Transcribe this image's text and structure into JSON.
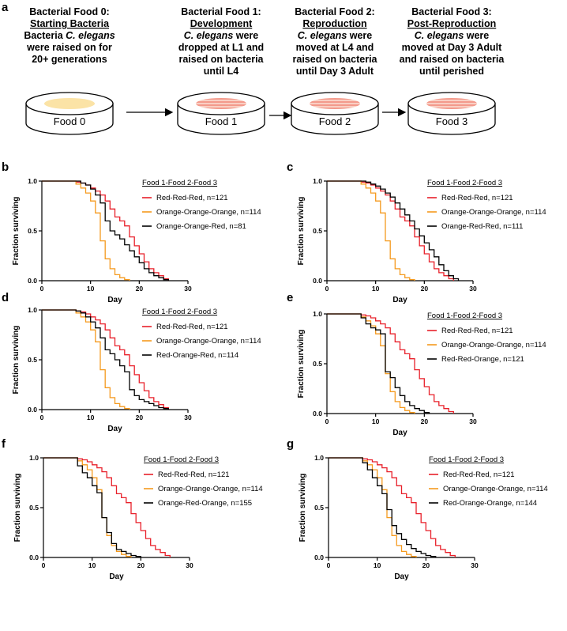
{
  "panel_a": {
    "label": "a",
    "stages": [
      {
        "lines": [
          "Bacterial Food 0:",
          "Starting Bacteria",
          "Bacteria C. elegans",
          "were raised on for",
          "20+ generations"
        ],
        "dish_label": "Food 0",
        "dish_color": "#fbe3a6",
        "striped": false
      },
      {
        "lines": [
          "Bacterial Food 1:",
          "Development",
          "C. elegans were",
          "dropped at L1 and",
          "raised on bacteria",
          "until L4"
        ],
        "dish_label": "Food 1",
        "dish_color": "#f6b8a8",
        "striped": true
      },
      {
        "lines": [
          "Bacterial Food 2:",
          "Reproduction",
          "C. elegans were",
          "moved at L4 and",
          "raised on bacteria",
          "until Day 3 Adult"
        ],
        "dish_label": "Food 2",
        "dish_color": "#f6b8a8",
        "striped": true
      },
      {
        "lines": [
          "Bacterial Food 3:",
          "Post-Reproduction",
          "C. elegans were",
          "moved at Day 3 Adult",
          "and raised on bacteria",
          "until perished"
        ],
        "dish_label": "Food 3",
        "dish_color": "#f6b8a8",
        "striped": true
      }
    ]
  },
  "colors": {
    "red": "#e8202a",
    "orange": "#f59a1e",
    "black": "#000000"
  },
  "chart_data": [
    {
      "panel": "b",
      "type": "line",
      "xlabel": "Day",
      "ylabel": "Fraction surviving",
      "xlim": [
        0,
        30
      ],
      "ylim": [
        0,
        1
      ],
      "xticks": [
        "0",
        "10",
        "20",
        "30"
      ],
      "yticks": [
        "0.0",
        "0.5",
        "1.0"
      ],
      "legend_title": "Food 1-Food 2-Food 3",
      "series": [
        {
          "name": "Red-Red-Red, n=121",
          "color": "red",
          "x": [
            0,
            7,
            8,
            9,
            10,
            11,
            12,
            13,
            14,
            15,
            16,
            17,
            18,
            19,
            20,
            21,
            22,
            23,
            24,
            25,
            26
          ],
          "y": [
            1,
            0.99,
            0.98,
            0.96,
            0.93,
            0.9,
            0.86,
            0.8,
            0.72,
            0.64,
            0.6,
            0.55,
            0.44,
            0.35,
            0.27,
            0.19,
            0.12,
            0.08,
            0.05,
            0.02,
            0
          ]
        },
        {
          "name": "Orange-Orange-Orange, n=114",
          "color": "orange",
          "x": [
            0,
            7,
            8,
            9,
            10,
            11,
            12,
            13,
            14,
            15,
            16,
            17,
            18
          ],
          "y": [
            1,
            0.97,
            0.93,
            0.88,
            0.8,
            0.68,
            0.4,
            0.22,
            0.12,
            0.06,
            0.03,
            0.01,
            0
          ]
        },
        {
          "name": "Orange-Orange-Red, n=81",
          "color": "black",
          "x": [
            0,
            8,
            9,
            10,
            11,
            12,
            13,
            14,
            15,
            16,
            17,
            18,
            19,
            20,
            21,
            22,
            23,
            24,
            25,
            26
          ],
          "y": [
            1,
            0.98,
            0.96,
            0.92,
            0.86,
            0.78,
            0.6,
            0.5,
            0.46,
            0.42,
            0.36,
            0.3,
            0.24,
            0.18,
            0.12,
            0.08,
            0.05,
            0.03,
            0.01,
            0
          ]
        }
      ]
    },
    {
      "panel": "c",
      "type": "line",
      "xlabel": "Day",
      "ylabel": "Fraction surviving",
      "xlim": [
        0,
        30
      ],
      "ylim": [
        0,
        1
      ],
      "xticks": [
        "0",
        "10",
        "20",
        "30"
      ],
      "yticks": [
        "0.0",
        "0.5",
        "1.0"
      ],
      "legend_title": "Food 1-Food 2-Food 3",
      "series": [
        {
          "name": "Red-Red-Red, n=121",
          "color": "red",
          "x": [
            0,
            7,
            8,
            9,
            10,
            11,
            12,
            13,
            14,
            15,
            16,
            17,
            18,
            19,
            20,
            21,
            22,
            23,
            24,
            25,
            26
          ],
          "y": [
            1,
            0.99,
            0.98,
            0.96,
            0.93,
            0.9,
            0.86,
            0.8,
            0.72,
            0.64,
            0.6,
            0.55,
            0.44,
            0.35,
            0.27,
            0.19,
            0.12,
            0.08,
            0.05,
            0.02,
            0
          ]
        },
        {
          "name": "Orange-Orange-Orange, n=114",
          "color": "orange",
          "x": [
            0,
            7,
            8,
            9,
            10,
            11,
            12,
            13,
            14,
            15,
            16,
            17,
            18
          ],
          "y": [
            1,
            0.97,
            0.93,
            0.88,
            0.8,
            0.68,
            0.4,
            0.22,
            0.12,
            0.06,
            0.03,
            0.01,
            0
          ]
        },
        {
          "name": "Orange-Red-Red, n=111",
          "color": "black",
          "x": [
            0,
            8,
            9,
            10,
            11,
            12,
            13,
            14,
            15,
            16,
            17,
            18,
            19,
            20,
            21,
            22,
            23,
            24,
            25,
            26,
            27
          ],
          "y": [
            1,
            0.99,
            0.97,
            0.95,
            0.92,
            0.88,
            0.84,
            0.78,
            0.72,
            0.66,
            0.6,
            0.52,
            0.45,
            0.38,
            0.31,
            0.24,
            0.16,
            0.1,
            0.05,
            0.02,
            0
          ]
        }
      ]
    },
    {
      "panel": "d",
      "type": "line",
      "xlabel": "Day",
      "ylabel": "Fraction surviving",
      "xlim": [
        0,
        30
      ],
      "ylim": [
        0,
        1
      ],
      "xticks": [
        "0",
        "10",
        "20",
        "30"
      ],
      "yticks": [
        "0.0",
        "0.5",
        "1.0"
      ],
      "legend_title": "Food 1-Food 2-Food 3",
      "series": [
        {
          "name": "Red-Red-Red, n=121",
          "color": "red",
          "x": [
            0,
            7,
            8,
            9,
            10,
            11,
            12,
            13,
            14,
            15,
            16,
            17,
            18,
            19,
            20,
            21,
            22,
            23,
            24,
            25,
            26
          ],
          "y": [
            1,
            0.99,
            0.98,
            0.96,
            0.93,
            0.9,
            0.86,
            0.8,
            0.72,
            0.64,
            0.6,
            0.55,
            0.44,
            0.35,
            0.27,
            0.19,
            0.12,
            0.08,
            0.05,
            0.02,
            0
          ]
        },
        {
          "name": "Orange-Orange-Orange, n=114",
          "color": "orange",
          "x": [
            0,
            7,
            8,
            9,
            10,
            11,
            12,
            13,
            14,
            15,
            16,
            17,
            18
          ],
          "y": [
            1,
            0.97,
            0.93,
            0.88,
            0.8,
            0.68,
            0.4,
            0.22,
            0.12,
            0.06,
            0.03,
            0.01,
            0
          ]
        },
        {
          "name": "Red-Orange-Red, n=114",
          "color": "black",
          "x": [
            0,
            7,
            8,
            9,
            10,
            11,
            12,
            13,
            14,
            15,
            16,
            17,
            18,
            19,
            20,
            21,
            22,
            23,
            24,
            25,
            26
          ],
          "y": [
            1,
            0.99,
            0.97,
            0.93,
            0.88,
            0.82,
            0.72,
            0.6,
            0.56,
            0.5,
            0.44,
            0.38,
            0.2,
            0.14,
            0.1,
            0.08,
            0.06,
            0.04,
            0.02,
            0.01,
            0
          ]
        }
      ]
    },
    {
      "panel": "e",
      "type": "line",
      "xlabel": "Day",
      "ylabel": "Fraction surviving",
      "xlim": [
        0,
        30
      ],
      "ylim": [
        0,
        1
      ],
      "xticks": [
        "0",
        "10",
        "20",
        "30"
      ],
      "yticks": [
        "0.0",
        "0.5",
        "1.0"
      ],
      "legend_title": "Food 1-Food 2-Food 3",
      "series": [
        {
          "name": "Red-Red-Red, n=121",
          "color": "red",
          "x": [
            0,
            7,
            8,
            9,
            10,
            11,
            12,
            13,
            14,
            15,
            16,
            17,
            18,
            19,
            20,
            21,
            22,
            23,
            24,
            25,
            26
          ],
          "y": [
            1,
            0.99,
            0.98,
            0.96,
            0.93,
            0.9,
            0.86,
            0.8,
            0.72,
            0.64,
            0.6,
            0.55,
            0.44,
            0.35,
            0.27,
            0.19,
            0.12,
            0.08,
            0.05,
            0.02,
            0
          ]
        },
        {
          "name": "Orange-Orange-Orange, n=114",
          "color": "orange",
          "x": [
            0,
            7,
            8,
            9,
            10,
            11,
            12,
            13,
            14,
            15,
            16,
            17,
            18
          ],
          "y": [
            1,
            0.97,
            0.93,
            0.88,
            0.8,
            0.68,
            0.4,
            0.22,
            0.12,
            0.06,
            0.03,
            0.01,
            0
          ]
        },
        {
          "name": "Red-Red-Orange, n=121",
          "color": "black",
          "x": [
            0,
            7,
            8,
            9,
            10,
            11,
            12,
            13,
            14,
            15,
            16,
            17,
            18,
            19,
            20,
            21
          ],
          "y": [
            1,
            0.96,
            0.9,
            0.86,
            0.84,
            0.8,
            0.42,
            0.36,
            0.26,
            0.18,
            0.12,
            0.08,
            0.05,
            0.03,
            0.01,
            0
          ]
        }
      ]
    },
    {
      "panel": "f",
      "type": "line",
      "xlabel": "Day",
      "ylabel": "Fraction surviving",
      "xlim": [
        0,
        30
      ],
      "ylim": [
        0,
        1
      ],
      "xticks": [
        "0",
        "10",
        "20",
        "30"
      ],
      "yticks": [
        "0.0",
        "0.5",
        "1.0"
      ],
      "legend_title": "Food 1-Food 2-Food 3",
      "series": [
        {
          "name": "Red-Red-Red, n=121",
          "color": "red",
          "x": [
            0,
            7,
            8,
            9,
            10,
            11,
            12,
            13,
            14,
            15,
            16,
            17,
            18,
            19,
            20,
            21,
            22,
            23,
            24,
            25,
            26
          ],
          "y": [
            1,
            0.99,
            0.98,
            0.96,
            0.93,
            0.9,
            0.86,
            0.8,
            0.72,
            0.64,
            0.6,
            0.55,
            0.44,
            0.35,
            0.27,
            0.19,
            0.12,
            0.08,
            0.05,
            0.02,
            0
          ]
        },
        {
          "name": "Orange-Orange-Orange, n=114",
          "color": "orange",
          "x": [
            0,
            7,
            8,
            9,
            10,
            11,
            12,
            13,
            14,
            15,
            16,
            17,
            18
          ],
          "y": [
            1,
            0.97,
            0.93,
            0.88,
            0.8,
            0.68,
            0.4,
            0.22,
            0.12,
            0.06,
            0.03,
            0.01,
            0
          ]
        },
        {
          "name": "Orange-Red-Orange, n=155",
          "color": "black",
          "x": [
            0,
            7,
            8,
            9,
            10,
            11,
            12,
            13,
            14,
            15,
            16,
            17,
            18,
            19,
            20
          ],
          "y": [
            1,
            0.92,
            0.85,
            0.8,
            0.72,
            0.65,
            0.4,
            0.25,
            0.14,
            0.08,
            0.06,
            0.04,
            0.02,
            0.01,
            0
          ]
        }
      ]
    },
    {
      "panel": "g",
      "type": "line",
      "xlabel": "Day",
      "ylabel": "Fraction surviving",
      "xlim": [
        0,
        30
      ],
      "ylim": [
        0,
        1
      ],
      "xticks": [
        "0",
        "10",
        "20",
        "30"
      ],
      "yticks": [
        "0.0",
        "0.5",
        "1.0"
      ],
      "legend_title": "Food 1-Food 2-Food 3",
      "series": [
        {
          "name": "Red-Red-Red, n=121",
          "color": "red",
          "x": [
            0,
            7,
            8,
            9,
            10,
            11,
            12,
            13,
            14,
            15,
            16,
            17,
            18,
            19,
            20,
            21,
            22,
            23,
            24,
            25,
            26
          ],
          "y": [
            1,
            0.99,
            0.98,
            0.96,
            0.93,
            0.9,
            0.86,
            0.8,
            0.72,
            0.64,
            0.6,
            0.55,
            0.44,
            0.35,
            0.27,
            0.19,
            0.12,
            0.08,
            0.05,
            0.02,
            0
          ]
        },
        {
          "name": "Orange-Orange-Orange, n=114",
          "color": "orange",
          "x": [
            0,
            7,
            8,
            9,
            10,
            11,
            12,
            13,
            14,
            15,
            16,
            17,
            18
          ],
          "y": [
            1,
            0.97,
            0.93,
            0.88,
            0.8,
            0.68,
            0.4,
            0.22,
            0.12,
            0.06,
            0.03,
            0.01,
            0
          ]
        },
        {
          "name": "Red-Orange-Orange, n=144",
          "color": "black",
          "x": [
            0,
            7,
            8,
            9,
            10,
            11,
            12,
            13,
            14,
            15,
            16,
            17,
            18,
            19,
            20,
            21,
            22
          ],
          "y": [
            1,
            0.95,
            0.88,
            0.8,
            0.72,
            0.64,
            0.48,
            0.32,
            0.24,
            0.18,
            0.13,
            0.09,
            0.06,
            0.04,
            0.02,
            0.01,
            0
          ]
        }
      ]
    }
  ]
}
